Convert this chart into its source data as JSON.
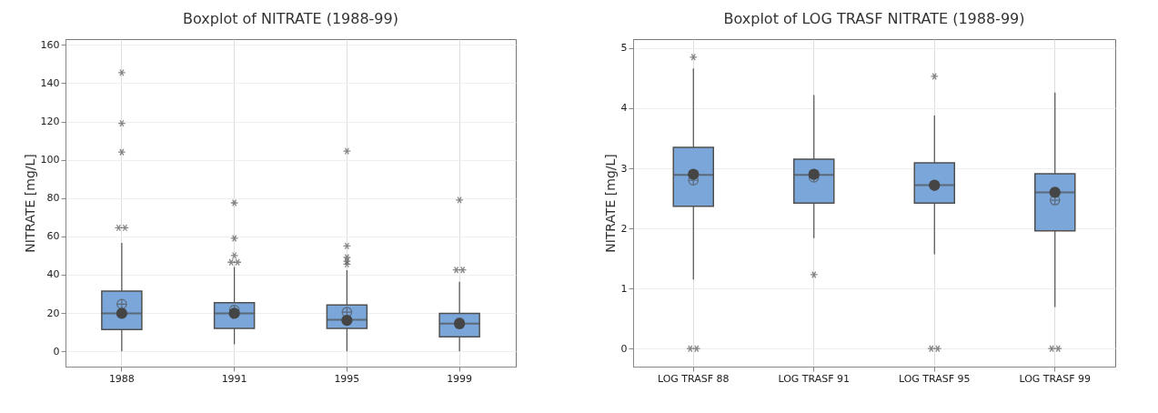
{
  "chart_data": [
    {
      "type": "box",
      "title": "Boxplot of NITRATE (1988-99)",
      "ylabel": "NITRATE [mg/L]",
      "categories": [
        "1988",
        "1991",
        "1995",
        "1999"
      ],
      "ylim": [
        -8,
        163
      ],
      "yticks": [
        0,
        20,
        40,
        60,
        80,
        100,
        120,
        140,
        160
      ],
      "grid": true,
      "series": [
        {
          "type": "box",
          "color": "#7aa6d9",
          "boxes": [
            {
              "low": 0,
              "q1": 11.4,
              "median": 19.8,
              "q3": 31.4,
              "high": 56.6,
              "mean": 24.6,
              "outliers": [
                145.5,
                119,
                104,
                64.5,
                64.5
              ]
            },
            {
              "low": 3.6,
              "q1": 12,
              "median": 19.8,
              "q3": 25.4,
              "high": 44,
              "mean": 21.5,
              "outliers": [
                77.5,
                59,
                50,
                46.5,
                46.5
              ]
            },
            {
              "low": 0,
              "q1": 12,
              "median": 16.5,
              "q3": 24.2,
              "high": 42.3,
              "mean": 20.4,
              "outliers": [
                104.5,
                55,
                49,
                47,
                45.5
              ]
            },
            {
              "low": 0,
              "q1": 7.6,
              "median": 14.4,
              "q3": 19.8,
              "high": 36.3,
              "mean": 15,
              "outliers": [
                79,
                42.5,
                42.5
              ]
            }
          ]
        },
        {
          "type": "scatter",
          "color": "#454545",
          "marker": "circle",
          "values": [
            19.8,
            19.8,
            16.2,
            14.4
          ]
        }
      ]
    },
    {
      "type": "box",
      "title": "Boxplot of LOG TRASF NITRATE (1988-99)",
      "ylabel": "NITRATE [mg/L]",
      "categories": [
        "LOG TRASF 88",
        "LOG TRASF 91",
        "LOG TRASF 95",
        "LOG TRASF 99"
      ],
      "ylim": [
        -0.3,
        5.15
      ],
      "yticks": [
        0,
        1,
        2,
        3,
        4,
        5
      ],
      "grid": true,
      "series": [
        {
          "type": "box",
          "color": "#7aa6d9",
          "boxes": [
            {
              "low": 1.15,
              "q1": 2.37,
              "median": 2.89,
              "q3": 3.35,
              "high": 4.66,
              "mean": 2.8,
              "outliers": [
                4.85,
                0,
                0
              ]
            },
            {
              "low": 1.84,
              "q1": 2.42,
              "median": 2.89,
              "q3": 3.15,
              "high": 4.22,
              "mean": 2.85,
              "outliers": [
                1.23
              ]
            },
            {
              "low": 1.57,
              "q1": 2.42,
              "median": 2.72,
              "q3": 3.09,
              "high": 3.88,
              "mean": 2.71,
              "outliers": [
                4.53,
                0,
                0
              ]
            },
            {
              "low": 0.69,
              "q1": 1.96,
              "median": 2.6,
              "q3": 2.91,
              "high": 4.26,
              "mean": 2.47,
              "outliers": [
                0,
                0
              ]
            }
          ]
        },
        {
          "type": "scatter",
          "color": "#454545",
          "marker": "circle",
          "values": [
            2.9,
            2.9,
            2.72,
            2.6
          ]
        }
      ]
    }
  ]
}
